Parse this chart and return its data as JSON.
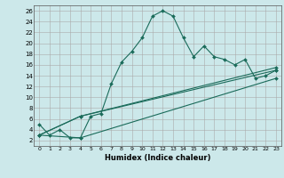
{
  "xlabel": "Humidex (Indice chaleur)",
  "bg_color": "#cce8ea",
  "grid_color": "#aaaaaa",
  "line_color": "#1a6b5a",
  "xlim": [
    -0.5,
    23.5
  ],
  "ylim": [
    1,
    27
  ],
  "xticks": [
    0,
    1,
    2,
    3,
    4,
    5,
    6,
    7,
    8,
    9,
    10,
    11,
    12,
    13,
    14,
    15,
    16,
    17,
    18,
    19,
    20,
    21,
    22,
    23
  ],
  "yticks": [
    2,
    4,
    6,
    8,
    10,
    12,
    14,
    16,
    18,
    20,
    22,
    24,
    26
  ],
  "series1_x": [
    0,
    1,
    2,
    3,
    4,
    5,
    6,
    7,
    8,
    9,
    10,
    11,
    12,
    13,
    14,
    15,
    16,
    17,
    18,
    19,
    20,
    21,
    22,
    23
  ],
  "series1_y": [
    5,
    3,
    4,
    2.5,
    2.5,
    6.5,
    7,
    12.5,
    16.5,
    18.5,
    21,
    25,
    26,
    25,
    21,
    17.5,
    19.5,
    17.5,
    17,
    16,
    17,
    13.5,
    14,
    15
  ],
  "series2_x": [
    0,
    4,
    23
  ],
  "series2_y": [
    3,
    2.5,
    13.5
  ],
  "series3_x": [
    0,
    4,
    23
  ],
  "series3_y": [
    3,
    6.5,
    15
  ],
  "series4_x": [
    0,
    4,
    23
  ],
  "series4_y": [
    3,
    6.5,
    15.5
  ]
}
